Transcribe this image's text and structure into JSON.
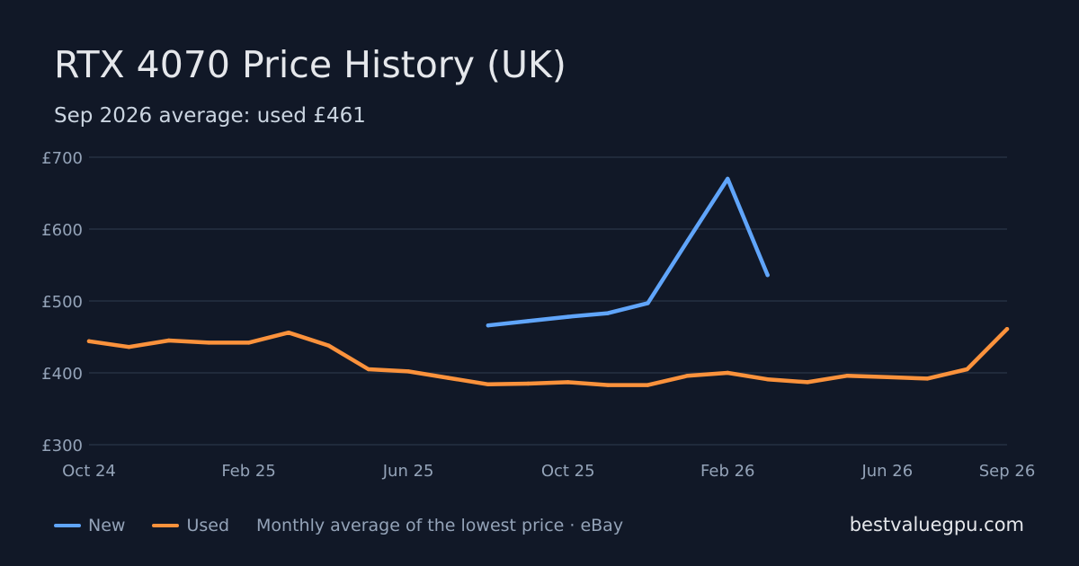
{
  "header": {
    "title": "RTX 4070 Price History (UK)",
    "subtitle": "Sep 2026 average: used £461"
  },
  "legend": {
    "items": [
      {
        "label": "New",
        "color": "#60a5fa"
      },
      {
        "label": "Used",
        "color": "#fb923c"
      }
    ],
    "note": "Monthly average of the lowest price · eBay"
  },
  "brand": "bestvaluegpu.com",
  "colors": {
    "background": "#111827",
    "grid": "#263042",
    "tick_text": "#94a3b8",
    "new": "#60a5fa",
    "used": "#fb923c"
  },
  "chart_data": {
    "type": "line",
    "title": "RTX 4070 Price History (UK)",
    "subtitle": "Sep 2026 average: used £461",
    "x": [
      "Oct 24",
      "Nov 24",
      "Dec 24",
      "Jan 25",
      "Feb 25",
      "Mar 25",
      "Apr 25",
      "May 25",
      "Jun 25",
      "Jul 25",
      "Aug 25",
      "Sep 25",
      "Oct 25",
      "Nov 25",
      "Dec 25",
      "Jan 26",
      "Feb 26",
      "Mar 26",
      "Apr 26",
      "May 26",
      "Jun 26",
      "Jul 26",
      "Aug 26",
      "Sep 26"
    ],
    "x_tick_labels": [
      "Oct 24",
      "Feb 25",
      "Jun 25",
      "Oct 25",
      "Feb 26",
      "Jun 26",
      "Sep 26"
    ],
    "y_tick_labels": [
      "£300",
      "£400",
      "£500",
      "£600",
      "£700"
    ],
    "y_ticks": [
      300,
      400,
      500,
      600,
      700
    ],
    "ylim": [
      300,
      700
    ],
    "grid": true,
    "legend_position": "bottom-left",
    "series": [
      {
        "name": "New",
        "color": "#60a5fa",
        "values": [
          null,
          null,
          null,
          null,
          null,
          null,
          null,
          null,
          null,
          null,
          466,
          472,
          478,
          483,
          497,
          584,
          670,
          536,
          null,
          null,
          null,
          null,
          null,
          null
        ]
      },
      {
        "name": "Used",
        "color": "#fb923c",
        "values": [
          444,
          436,
          445,
          442,
          442,
          456,
          438,
          405,
          402,
          393,
          384,
          385,
          387,
          383,
          383,
          396,
          400,
          391,
          387,
          396,
          394,
          392,
          405,
          461
        ]
      }
    ]
  }
}
